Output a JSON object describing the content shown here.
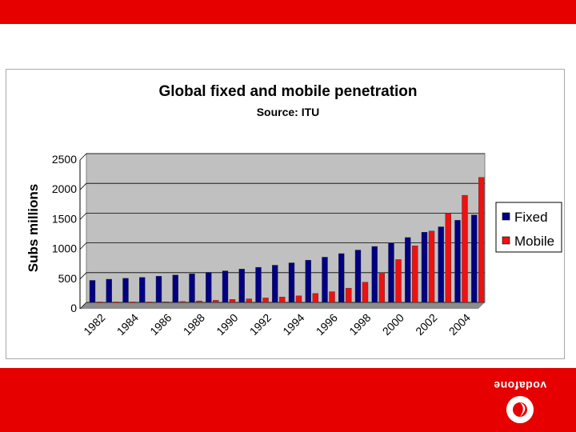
{
  "chart_data": {
    "type": "bar",
    "title": "Global fixed and mobile penetration",
    "subtitle": "Source: ITU",
    "ylabel": "Subs millions",
    "xlabel": "",
    "ylim": [
      0,
      2500
    ],
    "yticks": [
      0,
      500,
      1000,
      1500,
      2000,
      2500
    ],
    "categories": [
      "1982",
      "1983",
      "1984",
      "1985",
      "1986",
      "1987",
      "1988",
      "1989",
      "1990",
      "1991",
      "1992",
      "1993",
      "1994",
      "1995",
      "1996",
      "1997",
      "1998",
      "1999",
      "2000",
      "2001",
      "2002",
      "2003",
      "2004",
      "2005"
    ],
    "x_tick_labels": [
      "1982",
      "",
      "1984",
      "",
      "1986",
      "",
      "1988",
      "",
      "1990",
      "",
      "1992",
      "",
      "1994",
      "",
      "1996",
      "",
      "1998",
      "",
      "2000",
      "",
      "2002",
      "",
      "2004",
      ""
    ],
    "series": [
      {
        "name": "Fixed",
        "color": "#000080",
        "values": [
          370,
          390,
          405,
          420,
          440,
          460,
          480,
          505,
          530,
          560,
          590,
          625,
          665,
          710,
          760,
          820,
          880,
          940,
          1000,
          1090,
          1180,
          1270,
          1380,
          1470
        ]
      },
      {
        "name": "Mobile",
        "color": "#ee1111",
        "values": [
          0,
          2,
          4,
          6,
          10,
          15,
          25,
          35,
          50,
          60,
          75,
          90,
          110,
          150,
          180,
          240,
          340,
          500,
          720,
          950,
          1200,
          1500,
          1800,
          2100
        ]
      }
    ],
    "legend_position": "right",
    "grid": true,
    "plot_background": "#c0c0c0"
  },
  "brand": {
    "name": "vodafone",
    "accent": "#e60000"
  }
}
